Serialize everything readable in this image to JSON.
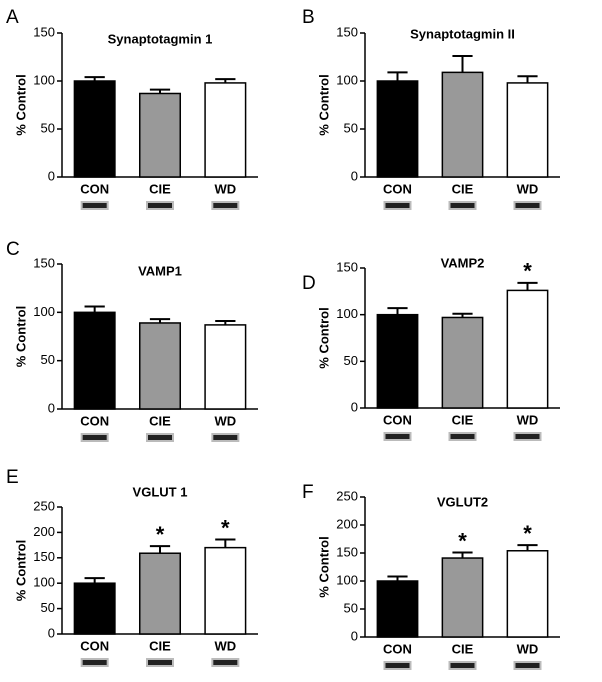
{
  "chart_data": [
    {
      "type": "bar",
      "panel": "A",
      "title": "Synaptotagmin 1",
      "ylabel": "% Control",
      "categories": [
        "CON",
        "CIE",
        "WD"
      ],
      "values": [
        100,
        87,
        98
      ],
      "errors": [
        4,
        4,
        4
      ],
      "colors": [
        "#000000",
        "#999999",
        "#ffffff"
      ],
      "significance": [
        null,
        null,
        null
      ],
      "ylim": [
        0,
        150
      ],
      "yticks": [
        0,
        50,
        100,
        150
      ]
    },
    {
      "type": "bar",
      "panel": "B",
      "title": "Synaptotagmin II",
      "ylabel": "% Control",
      "categories": [
        "CON",
        "CIE",
        "WD"
      ],
      "values": [
        100,
        109,
        98
      ],
      "errors": [
        9,
        17,
        7
      ],
      "colors": [
        "#000000",
        "#999999",
        "#ffffff"
      ],
      "significance": [
        null,
        null,
        null
      ],
      "ylim": [
        0,
        150
      ],
      "yticks": [
        0,
        50,
        100,
        150
      ]
    },
    {
      "type": "bar",
      "panel": "C",
      "title": "VAMP1",
      "ylabel": "% Control",
      "categories": [
        "CON",
        "CIE",
        "WD"
      ],
      "values": [
        100,
        89,
        87
      ],
      "errors": [
        6,
        4,
        4
      ],
      "colors": [
        "#000000",
        "#999999",
        "#ffffff"
      ],
      "significance": [
        null,
        null,
        null
      ],
      "ylim": [
        0,
        150
      ],
      "yticks": [
        0,
        50,
        100,
        150
      ]
    },
    {
      "type": "bar",
      "panel": "D",
      "title": "VAMP2",
      "ylabel": "% Control",
      "categories": [
        "CON",
        "CIE",
        "WD"
      ],
      "values": [
        100,
        97,
        126
      ],
      "errors": [
        7,
        4,
        8
      ],
      "colors": [
        "#000000",
        "#999999",
        "#ffffff"
      ],
      "significance": [
        null,
        null,
        "*"
      ],
      "ylim": [
        0,
        150
      ],
      "yticks": [
        0,
        50,
        100,
        150
      ]
    },
    {
      "type": "bar",
      "panel": "E",
      "title": "VGLUT 1",
      "ylabel": "% Control",
      "categories": [
        "CON",
        "CIE",
        "WD"
      ],
      "values": [
        100,
        159,
        170
      ],
      "errors": [
        10,
        14,
        16
      ],
      "colors": [
        "#000000",
        "#999999",
        "#ffffff"
      ],
      "significance": [
        null,
        "*",
        "*"
      ],
      "ylim": [
        0,
        250
      ],
      "yticks": [
        0,
        50,
        100,
        150,
        200,
        250
      ]
    },
    {
      "type": "bar",
      "panel": "F",
      "title": "VGLUT2",
      "ylabel": "% Control",
      "categories": [
        "CON",
        "CIE",
        "WD"
      ],
      "values": [
        100,
        141,
        154
      ],
      "errors": [
        8,
        10,
        10
      ],
      "colors": [
        "#000000",
        "#999999",
        "#ffffff"
      ],
      "significance": [
        null,
        "*",
        "*"
      ],
      "ylim": [
        0,
        250
      ],
      "yticks": [
        0,
        50,
        100,
        150,
        200,
        250
      ]
    }
  ]
}
